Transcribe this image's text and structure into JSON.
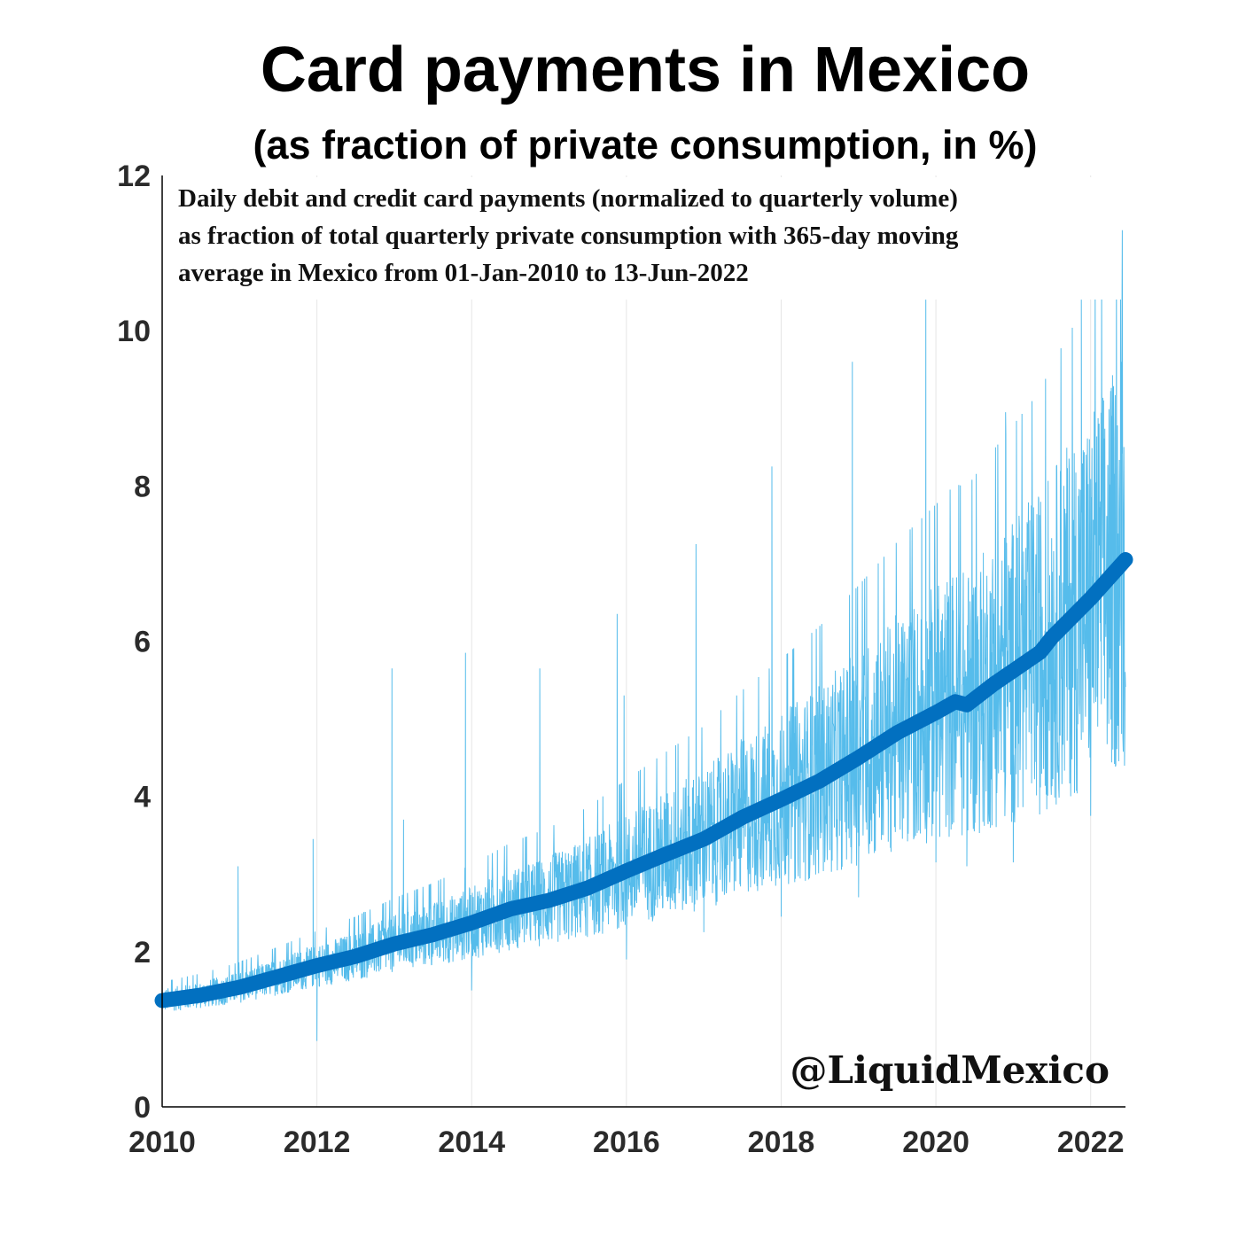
{
  "title": "Card payments in Mexico",
  "subtitle": "(as fraction of private consumption, in %)",
  "description_lines": [
    "Daily debit and credit card payments (normalized to quarterly volume)",
    "as fraction of total quarterly private consumption with 365-day moving",
    "average in Mexico from 01-Jan-2010 to 13-Jun-2022"
  ],
  "watermark": "@LiquidMexico",
  "colors": {
    "daily": "#4db8ea",
    "moving_average": "#0270c0",
    "axis": "#000000",
    "grid": "#e6e6e6"
  },
  "chart_data": {
    "type": "line",
    "xlim": [
      2010.0,
      2022.45
    ],
    "ylim": [
      0,
      12
    ],
    "x_ticks": [
      2010,
      2012,
      2014,
      2016,
      2018,
      2020,
      2022
    ],
    "y_ticks": [
      0,
      2,
      4,
      6,
      8,
      10,
      12
    ],
    "grid": "vertical gridlines at x ticks",
    "legend": "none",
    "series": [
      {
        "x": [
          2010.0,
          2010.5,
          2011.0,
          2011.5,
          2012.0,
          2012.5,
          2013.0,
          2013.5,
          2014.0,
          2014.5,
          2015.0,
          2015.5,
          2016.0,
          2016.5,
          2017.0,
          2017.5,
          2018.0,
          2018.5,
          2019.0,
          2019.5,
          2020.0,
          2020.25,
          2020.4,
          2020.75,
          2021.0,
          2021.35,
          2021.5,
          2022.0,
          2022.45
        ],
        "values": [
          1.37,
          1.44,
          1.54,
          1.68,
          1.82,
          1.94,
          2.1,
          2.22,
          2.37,
          2.55,
          2.66,
          2.82,
          3.04,
          3.25,
          3.45,
          3.73,
          3.96,
          4.2,
          4.5,
          4.82,
          5.08,
          5.22,
          5.18,
          5.45,
          5.62,
          5.86,
          6.05,
          6.55,
          7.05
        ]
      }
    ],
    "daily_spikes": [
      {
        "x": 2010.98,
        "value": 3.1
      },
      {
        "x": 2011.95,
        "value": 3.45
      },
      {
        "x": 2012.0,
        "value": 0.85
      },
      {
        "x": 2012.97,
        "value": 5.65
      },
      {
        "x": 2013.12,
        "value": 3.7
      },
      {
        "x": 2013.92,
        "value": 5.85
      },
      {
        "x": 2014.0,
        "value": 1.5
      },
      {
        "x": 2014.88,
        "value": 5.65
      },
      {
        "x": 2015.88,
        "value": 6.35
      },
      {
        "x": 2015.97,
        "value": 5.3
      },
      {
        "x": 2016.0,
        "value": 1.9
      },
      {
        "x": 2016.9,
        "value": 7.25
      },
      {
        "x": 2017.0,
        "value": 2.25
      },
      {
        "x": 2017.88,
        "value": 8.25
      },
      {
        "x": 2018.0,
        "value": 2.45
      },
      {
        "x": 2018.92,
        "value": 9.6
      },
      {
        "x": 2019.0,
        "value": 2.7
      },
      {
        "x": 2019.87,
        "value": 10.4
      },
      {
        "x": 2020.0,
        "value": 3.15
      },
      {
        "x": 2020.4,
        "value": 3.1
      },
      {
        "x": 2020.9,
        "value": 8.95
      },
      {
        "x": 2021.0,
        "value": 3.15
      },
      {
        "x": 2021.88,
        "value": 10.4
      },
      {
        "x": 2022.0,
        "value": 3.75
      },
      {
        "x": 2022.4,
        "value": 9.6
      }
    ]
  }
}
